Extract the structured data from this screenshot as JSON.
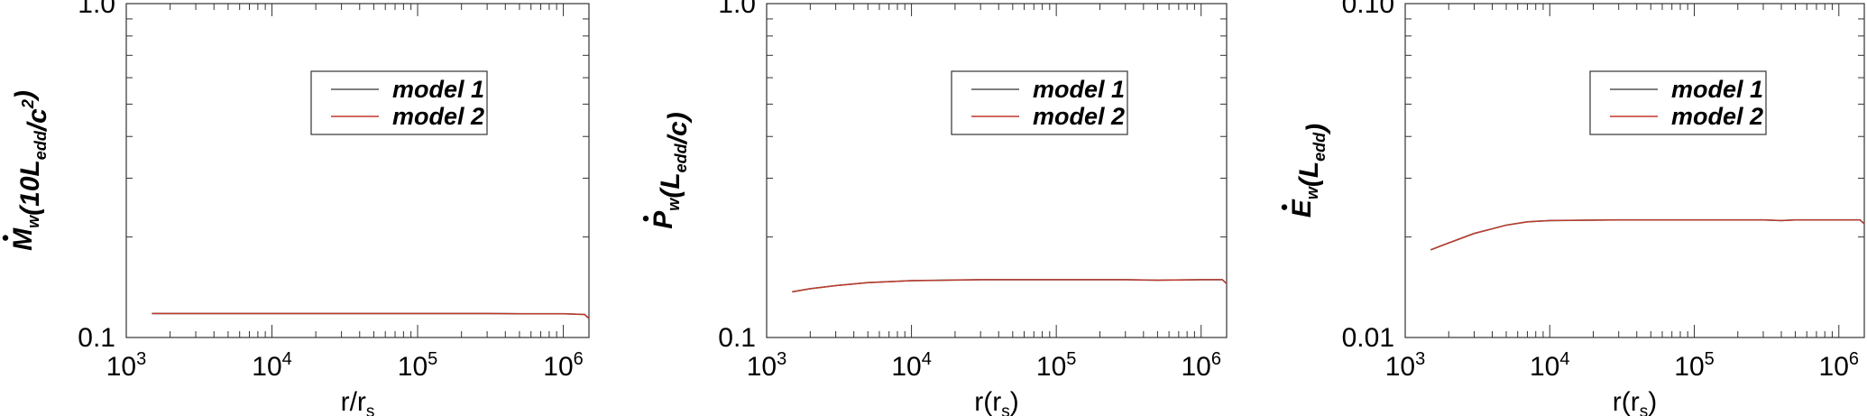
{
  "chart_data": [
    {
      "type": "line",
      "xscale": "log",
      "yscale": "log",
      "xlim": [
        1000,
        1500000
      ],
      "ylim": [
        0.1,
        1.0
      ],
      "xlabel": {
        "main": "r/r",
        "sub": "s",
        "tail": ""
      },
      "ylabel": {
        "sym": "M",
        "parts": [
          {
            "t": "w",
            "s": "sub"
          },
          {
            "t": "(10L",
            "s": ""
          },
          {
            "t": "edd",
            "s": "sub"
          },
          {
            "t": "/c",
            "s": ""
          },
          {
            "t": "2",
            "s": "sup"
          },
          {
            "t": ")",
            "s": ""
          }
        ]
      },
      "xticks": [
        {
          "v": 1000,
          "base": "10",
          "exp": "3"
        },
        {
          "v": 10000,
          "base": "10",
          "exp": "4"
        },
        {
          "v": 100000,
          "base": "10",
          "exp": "5"
        },
        {
          "v": 1000000,
          "base": "10",
          "exp": "6"
        }
      ],
      "yticks": [
        {
          "v": 0.1,
          "label": "0.1"
        },
        {
          "v": 1.0,
          "label": "1.0"
        }
      ],
      "legend": [
        "model 1",
        "model 2"
      ],
      "colors": [
        "#555555",
        "#c0392b"
      ],
      "series": [
        {
          "name": "model 1",
          "x": [
            1500,
            3000,
            10000,
            30000,
            100000,
            300000,
            500000,
            1000000,
            1400000,
            1500000
          ],
          "y": [
            0.118,
            0.118,
            0.118,
            0.118,
            0.118,
            0.118,
            0.1178,
            0.1178,
            0.1172,
            0.114
          ]
        },
        {
          "name": "model 2",
          "x": [
            1500,
            3000,
            10000,
            30000,
            100000,
            300000,
            500000,
            1000000,
            1400000,
            1500000
          ],
          "y": [
            0.118,
            0.118,
            0.118,
            0.118,
            0.118,
            0.118,
            0.1178,
            0.1178,
            0.1172,
            0.114
          ]
        }
      ]
    },
    {
      "type": "line",
      "xscale": "log",
      "yscale": "log",
      "xlim": [
        1000,
        1500000
      ],
      "ylim": [
        0.1,
        1.0
      ],
      "xlabel": {
        "main": "r(r",
        "sub": "s",
        "tail": ")"
      },
      "ylabel": {
        "sym": "P",
        "parts": [
          {
            "t": "w",
            "s": "sub"
          },
          {
            "t": "(L",
            "s": ""
          },
          {
            "t": "edd",
            "s": "sub"
          },
          {
            "t": "/c)",
            "s": ""
          }
        ]
      },
      "xticks": [
        {
          "v": 1000,
          "base": "10",
          "exp": "3"
        },
        {
          "v": 10000,
          "base": "10",
          "exp": "4"
        },
        {
          "v": 100000,
          "base": "10",
          "exp": "5"
        },
        {
          "v": 1000000,
          "base": "10",
          "exp": "6"
        }
      ],
      "yticks": [
        {
          "v": 0.1,
          "label": "0.1"
        },
        {
          "v": 1.0,
          "label": "1.0"
        }
      ],
      "legend": [
        "model 1",
        "model 2"
      ],
      "colors": [
        "#555555",
        "#c0392b"
      ],
      "series": [
        {
          "name": "model 1",
          "x": [
            1500,
            2000,
            3000,
            5000,
            10000,
            30000,
            100000,
            300000,
            500000,
            1000000,
            1400000,
            1500000
          ],
          "y": [
            0.137,
            0.14,
            0.143,
            0.146,
            0.148,
            0.149,
            0.149,
            0.149,
            0.1485,
            0.149,
            0.149,
            0.145
          ]
        },
        {
          "name": "model 2",
          "x": [
            1500,
            2000,
            3000,
            5000,
            10000,
            30000,
            100000,
            300000,
            500000,
            1000000,
            1400000,
            1500000
          ],
          "y": [
            0.137,
            0.14,
            0.143,
            0.146,
            0.148,
            0.149,
            0.149,
            0.149,
            0.1485,
            0.149,
            0.149,
            0.145
          ]
        }
      ]
    },
    {
      "type": "line",
      "xscale": "log",
      "yscale": "log",
      "xlim": [
        1000,
        1500000
      ],
      "ylim": [
        0.01,
        0.1
      ],
      "xlabel": {
        "main": "r(r",
        "sub": "s",
        "tail": ")"
      },
      "ylabel": {
        "sym": "E",
        "parts": [
          {
            "t": "w",
            "s": "sub"
          },
          {
            "t": "(L",
            "s": ""
          },
          {
            "t": "edd",
            "s": "sub"
          },
          {
            "t": ")",
            "s": ""
          }
        ]
      },
      "xticks": [
        {
          "v": 1000,
          "base": "10",
          "exp": "3"
        },
        {
          "v": 10000,
          "base": "10",
          "exp": "4"
        },
        {
          "v": 100000,
          "base": "10",
          "exp": "5"
        },
        {
          "v": 1000000,
          "base": "10",
          "exp": "6"
        }
      ],
      "yticks": [
        {
          "v": 0.01,
          "label": "0.01"
        },
        {
          "v": 0.1,
          "label": "0.10"
        }
      ],
      "legend": [
        "model 1",
        "model 2"
      ],
      "colors": [
        "#555555",
        "#c0392b"
      ],
      "series": [
        {
          "name": "model 1",
          "x": [
            1500,
            2000,
            3000,
            5000,
            7000,
            10000,
            30000,
            100000,
            300000,
            400000,
            500000,
            1000000,
            1400000,
            1500000
          ],
          "y": [
            0.0183,
            0.0192,
            0.0205,
            0.0217,
            0.0222,
            0.0224,
            0.0225,
            0.0225,
            0.0225,
            0.0224,
            0.0225,
            0.0225,
            0.0225,
            0.0219
          ]
        },
        {
          "name": "model 2",
          "x": [
            1500,
            2000,
            3000,
            5000,
            7000,
            10000,
            30000,
            100000,
            300000,
            400000,
            500000,
            1000000,
            1400000,
            1500000
          ],
          "y": [
            0.0183,
            0.0192,
            0.0205,
            0.0217,
            0.0222,
            0.0224,
            0.0225,
            0.0225,
            0.0225,
            0.0224,
            0.0225,
            0.0225,
            0.0225,
            0.0219
          ]
        }
      ]
    }
  ]
}
